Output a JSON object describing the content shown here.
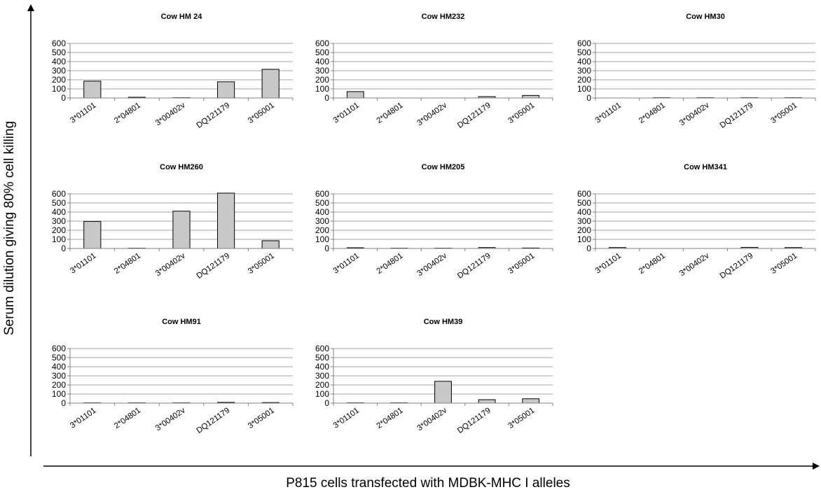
{
  "figure": {
    "y_axis_title": "Serum dilution giving 80% cell killing",
    "x_axis_title": "P815 cells transfected with MDBK-MHC I alleles"
  },
  "chart_data": [
    {
      "type": "bar",
      "title": "Cow HM 24",
      "categories": [
        "3*01101",
        "2*04801",
        "3*00402v",
        "DQ121179",
        "3*05001"
      ],
      "values": [
        185,
        8,
        3,
        178,
        315
      ],
      "ylim": [
        0,
        600
      ],
      "yticks": [
        0,
        100,
        200,
        300,
        400,
        500,
        600
      ],
      "grid": true
    },
    {
      "type": "bar",
      "title": "Cow HM232",
      "categories": [
        "3*01101",
        "2*04801",
        "3*00402v",
        "DQ121179",
        "3*05001"
      ],
      "values": [
        70,
        0,
        0,
        15,
        28
      ],
      "ylim": [
        0,
        600
      ],
      "yticks": [
        0,
        100,
        200,
        300,
        400,
        500,
        600
      ],
      "grid": true
    },
    {
      "type": "bar",
      "title": "Cow HM30",
      "categories": [
        "3*01101",
        "2*04801",
        "3*00402v",
        "DQ121179",
        "3*05001"
      ],
      "values": [
        0,
        3,
        3,
        3,
        3
      ],
      "ylim": [
        0,
        600
      ],
      "yticks": [
        0,
        100,
        200,
        300,
        400,
        500,
        600
      ],
      "grid": true
    },
    {
      "type": "bar",
      "title": "Cow HM260",
      "categories": [
        "3*01101",
        "2*04801",
        "3*00402v",
        "DQ121179",
        "3*05001"
      ],
      "values": [
        297,
        3,
        410,
        608,
        85
      ],
      "ylim": [
        0,
        600
      ],
      "yticks": [
        0,
        100,
        200,
        300,
        400,
        500,
        600
      ],
      "grid": true
    },
    {
      "type": "bar",
      "title": "Cow HM205",
      "categories": [
        "3*01101",
        "2*04801",
        "3*00402v",
        "DQ121179",
        "3*05001"
      ],
      "values": [
        8,
        3,
        3,
        10,
        5
      ],
      "ylim": [
        0,
        600
      ],
      "yticks": [
        0,
        100,
        200,
        300,
        400,
        500,
        600
      ],
      "grid": true
    },
    {
      "type": "bar",
      "title": "Cow HM341",
      "categories": [
        "3*01101",
        "2*04801",
        "3*00402v",
        "DQ121179",
        "3*05001"
      ],
      "values": [
        10,
        0,
        0,
        12,
        10
      ],
      "ylim": [
        0,
        600
      ],
      "yticks": [
        0,
        100,
        200,
        300,
        400,
        500,
        600
      ],
      "grid": true
    },
    {
      "type": "bar",
      "title": "Cow HM91",
      "categories": [
        "3*01101",
        "2*04801",
        "3*00402v",
        "DQ121179",
        "3*05001"
      ],
      "values": [
        3,
        3,
        3,
        8,
        6
      ],
      "ylim": [
        0,
        600
      ],
      "yticks": [
        0,
        100,
        200,
        300,
        400,
        500,
        600
      ],
      "grid": true
    },
    {
      "type": "bar",
      "title": "Cow HM39",
      "categories": [
        "3*01101",
        "2*04801",
        "3*00402v",
        "DQ121179",
        "3*05001"
      ],
      "values": [
        3,
        3,
        240,
        38,
        48
      ],
      "ylim": [
        0,
        600
      ],
      "yticks": [
        0,
        100,
        200,
        300,
        400,
        500,
        600
      ],
      "grid": true
    }
  ]
}
